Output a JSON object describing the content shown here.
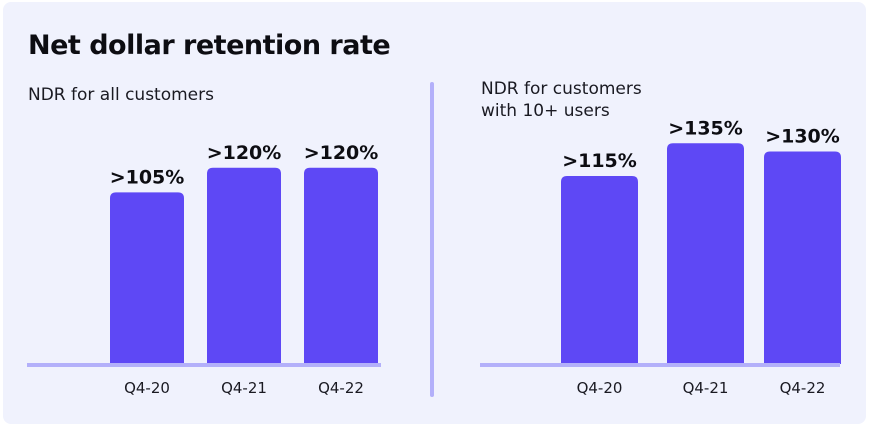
{
  "title": "Net dollar retention rate",
  "colors": {
    "bar": "#5e48f5",
    "axis": "#b3b0fa",
    "background": "#f0f2fd"
  },
  "chart_data": [
    {
      "type": "bar",
      "title": "NDR for all customers",
      "categories": [
        "Q4-20",
        "Q4-21",
        "Q4-22"
      ],
      "values": [
        105,
        120,
        120
      ],
      "labels": [
        ">105%",
        ">120%",
        ">120%"
      ],
      "ylim": [
        0,
        130
      ]
    },
    {
      "type": "bar",
      "title": "NDR for customers with 10+ users",
      "title_lines": [
        "NDR for customers",
        "with 10+ users"
      ],
      "categories": [
        "Q4-20",
        "Q4-21",
        "Q4-22"
      ],
      "values": [
        115,
        135,
        130
      ],
      "labels": [
        ">115%",
        ">135%",
        ">130%"
      ],
      "ylim": [
        0,
        140
      ]
    }
  ]
}
